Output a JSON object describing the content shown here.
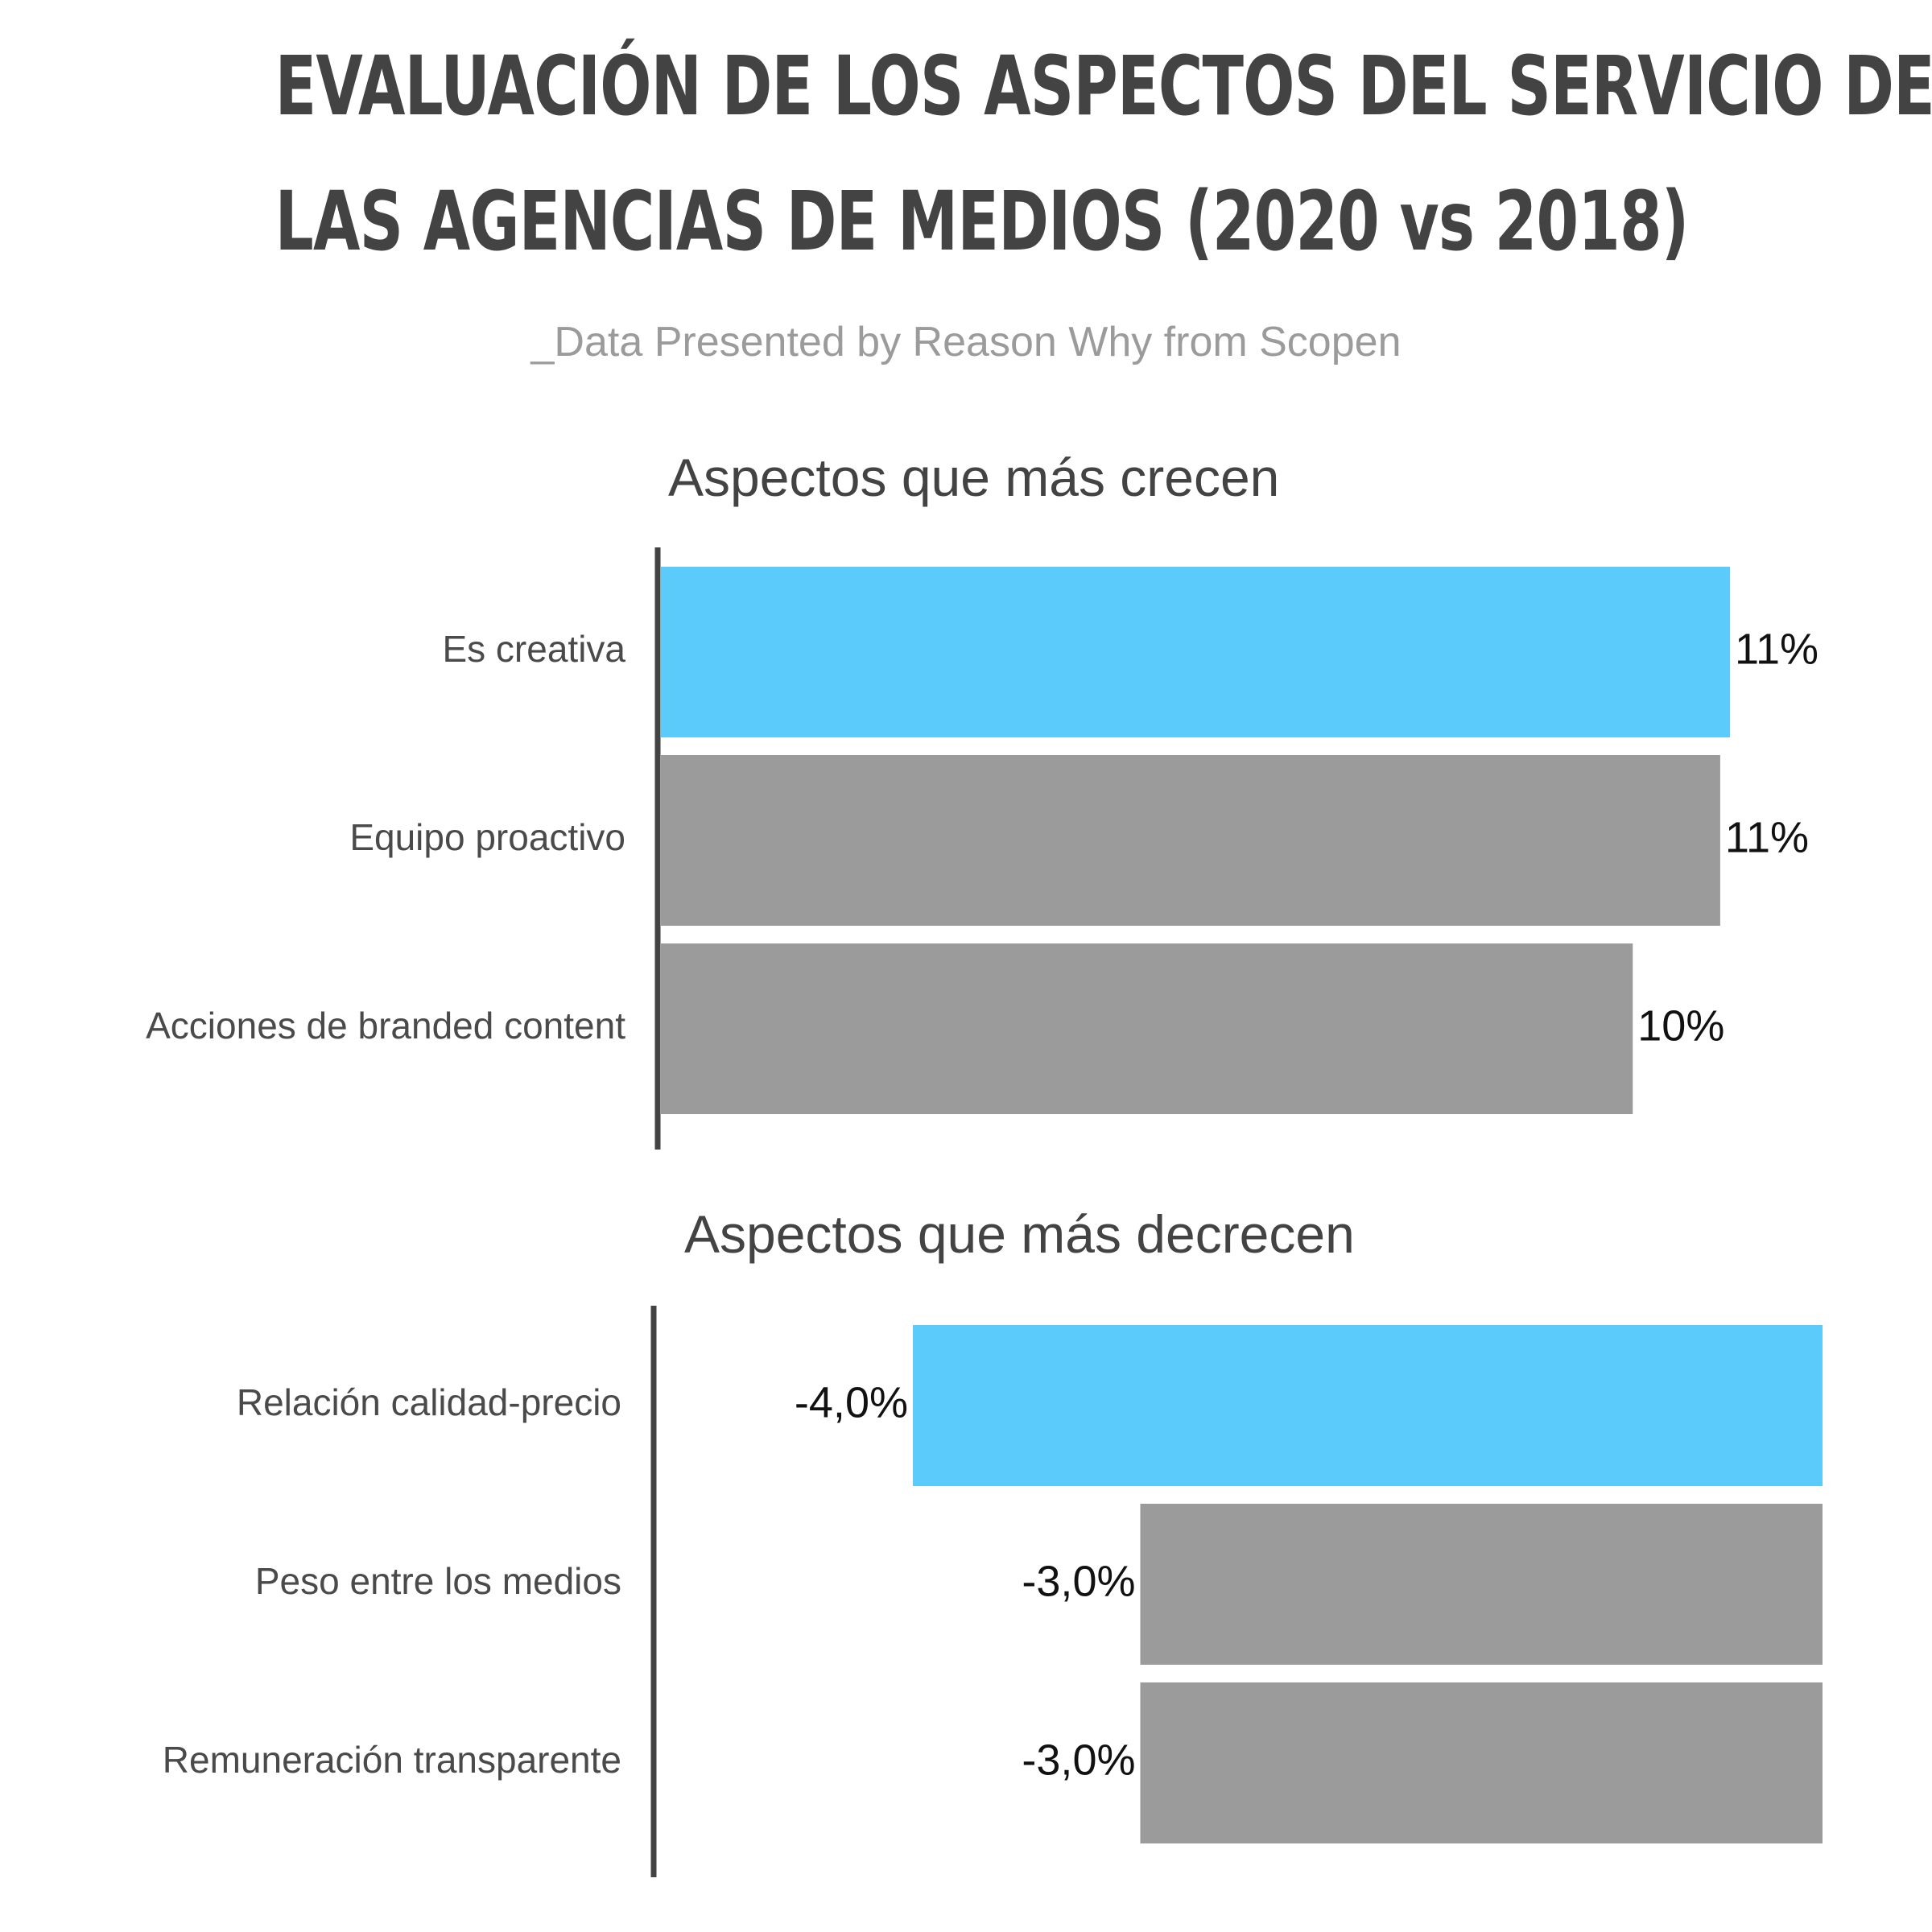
{
  "header": {
    "title_line1": "EVALUACIÓN DE LOS ASPECTOS DEL SERVICIO DE",
    "title_line2": "LAS AGENCIAS DE MEDIOS (2020 vs 2018)",
    "subtitle": "_Data Presented by Reason Why from Scopen"
  },
  "colors": {
    "highlight": "#5bcbfc",
    "default": "#9b9b9b",
    "axis": "#434343"
  },
  "chart_data": [
    {
      "type": "bar",
      "orientation": "horizontal",
      "title": "Aspectos que más crecen",
      "categories": [
        "Es creativa",
        "Equipo proactivo",
        "Acciones de branded content"
      ],
      "values": [
        11,
        10.9,
        10
      ],
      "value_labels": [
        "11%",
        "11%",
        "10%"
      ],
      "highlight_index": 0,
      "unit": "%",
      "xlim": [
        0,
        12
      ]
    },
    {
      "type": "bar",
      "orientation": "horizontal",
      "title": "Aspectos que más decrecen",
      "categories": [
        "Relación calidad-precio",
        "Peso entre los medios",
        "Remuneración transparente"
      ],
      "values": [
        -4.0,
        -3.0,
        -3.0
      ],
      "value_labels": [
        "-4,0%",
        "-3,0%",
        "-3,0%"
      ],
      "highlight_index": 0,
      "unit": "%",
      "xlim": [
        -5,
        0
      ]
    }
  ]
}
